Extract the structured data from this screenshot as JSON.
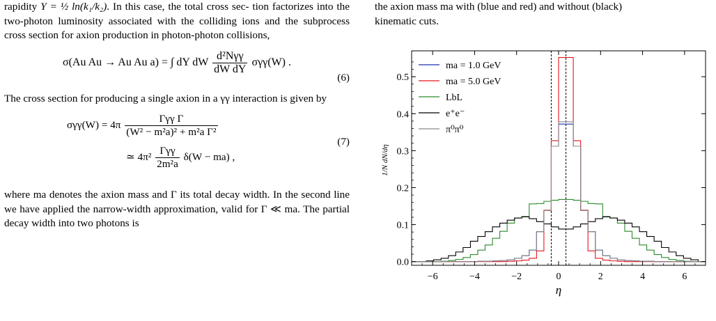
{
  "left_text": {
    "line1_a": "rapidity ",
    "line1_b": ". In this case, the total cross sec-",
    "rapidity_expr": "Y = ½ ln(k₁/k₂)",
    "para1_rest": "tion factorizes into the two-photon luminosity associated with the colliding ions and the subprocess cross section for axion production in photon-photon collisions,",
    "eq6_lhs": "σ(Au Au → Au Au a) = ∫ dY dW",
    "eq6_num": "d²Nγγ",
    "eq6_den": "dW dY",
    "eq6_rhs": "σγγ(W) .",
    "eq6_number": "(6)",
    "para2": "The cross section for producing a single axion in a γγ interaction is given by",
    "eq7a_lhs": "σγγ(W) = 4π",
    "eq7a_num": "Γγγ Γ",
    "eq7a_den": "(W² − m²a)² + m²a Γ²",
    "eq7b_lhs": "≃ 4π²",
    "eq7b_num": "Γγγ",
    "eq7b_den": "2m²a",
    "eq7b_rhs": "δ(W − ma) ,",
    "eq7_number": "(7)",
    "para3": "where ma denotes the axion mass and Γ its total decay width. In the second line we have applied the narrow-width approximation, valid for Γ ≪ ma. The partial decay width into two photons is"
  },
  "right_text": {
    "caption_line1": "the axion mass ma with (blue and red) and without (black)",
    "caption_line2": "kinematic cuts."
  },
  "chart_data": {
    "type": "line",
    "xlabel": "η",
    "ylabel": "1/N dN/dη",
    "xlim": [
      -7,
      7
    ],
    "ylim": [
      -0.01,
      0.57
    ],
    "x_ticks": [
      -6,
      -4,
      -2,
      0,
      2,
      4,
      6
    ],
    "x_tick_labels": [
      "−6",
      "−4",
      "−2",
      "0",
      "2",
      "4",
      "6"
    ],
    "y_ticks": [
      0.0,
      0.1,
      0.2,
      0.3,
      0.4,
      0.5
    ],
    "y_tick_labels": [
      "0.0",
      "0.1",
      "0.2",
      "0.3",
      "0.4",
      "0.5"
    ],
    "cut_lines": [
      -0.35,
      0.35
    ],
    "legend_position": "top-left",
    "bin_edges": [
      -6.65,
      -6.3,
      -5.95,
      -5.6,
      -5.25,
      -4.9,
      -4.55,
      -4.2,
      -3.85,
      -3.5,
      -3.15,
      -2.8,
      -2.45,
      -2.1,
      -1.75,
      -1.4,
      -1.05,
      -0.7,
      -0.35,
      0.0,
      0.35,
      0.7,
      1.05,
      1.4,
      1.75,
      2.1,
      2.45,
      2.8,
      3.15,
      3.5,
      3.85,
      4.2,
      4.55,
      4.9,
      5.25,
      5.6,
      5.95,
      6.3,
      6.65
    ],
    "series": [
      {
        "name": "ma = 1.0 GeV",
        "color": "#1f2fb4",
        "values": [
          0,
          0,
          0,
          0,
          0,
          0,
          0,
          0,
          0.001,
          0.001,
          0.002,
          0.003,
          0.005,
          0.009,
          0.016,
          0.031,
          0.081,
          0.138,
          0.312,
          0.372,
          0.372,
          0.312,
          0.138,
          0.081,
          0.031,
          0.016,
          0.009,
          0.005,
          0.003,
          0.002,
          0.001,
          0.001,
          0,
          0,
          0,
          0,
          0,
          0
        ]
      },
      {
        "name": "ma = 5.0 GeV",
        "color": "#e3141b",
        "values": [
          0,
          0,
          0,
          0,
          0,
          0,
          0,
          0,
          0,
          0,
          0,
          0,
          0.001,
          0.002,
          0.004,
          0.009,
          0.029,
          0.139,
          0.327,
          0.552,
          0.552,
          0.327,
          0.139,
          0.029,
          0.009,
          0.004,
          0.002,
          0.001,
          0,
          0,
          0,
          0,
          0,
          0,
          0,
          0,
          0,
          0
        ]
      },
      {
        "name": "LbL",
        "color": "#2a8a2a",
        "values": [
          0,
          0,
          0,
          0.001,
          0.003,
          0.006,
          0.011,
          0.019,
          0.031,
          0.045,
          0.063,
          0.082,
          0.104,
          0.118,
          0.122,
          0.156,
          0.157,
          0.163,
          0.166,
          0.168,
          0.168,
          0.166,
          0.163,
          0.157,
          0.156,
          0.122,
          0.118,
          0.104,
          0.082,
          0.063,
          0.045,
          0.031,
          0.019,
          0.011,
          0.006,
          0.003,
          0.001,
          0
        ]
      },
      {
        "name": "e⁺e⁻",
        "color": "#000000",
        "values": [
          0,
          0.002,
          0.005,
          0.009,
          0.016,
          0.026,
          0.038,
          0.055,
          0.068,
          0.081,
          0.094,
          0.104,
          0.112,
          0.118,
          0.121,
          0.116,
          0.108,
          0.102,
          0.094,
          0.088,
          0.088,
          0.094,
          0.102,
          0.108,
          0.116,
          0.121,
          0.118,
          0.112,
          0.104,
          0.094,
          0.081,
          0.068,
          0.055,
          0.038,
          0.026,
          0.016,
          0.009,
          0.005
        ]
      },
      {
        "name": "π⁰π⁰",
        "color": "#8a8a8a",
        "values": [
          0,
          0,
          0,
          0,
          0,
          0,
          0,
          0,
          0.001,
          0.001,
          0.002,
          0.003,
          0.005,
          0.009,
          0.016,
          0.031,
          0.081,
          0.138,
          0.312,
          0.378,
          0.378,
          0.312,
          0.138,
          0.081,
          0.031,
          0.016,
          0.009,
          0.005,
          0.003,
          0.002,
          0.001,
          0.001,
          0,
          0,
          0,
          0,
          0,
          0
        ]
      }
    ]
  }
}
